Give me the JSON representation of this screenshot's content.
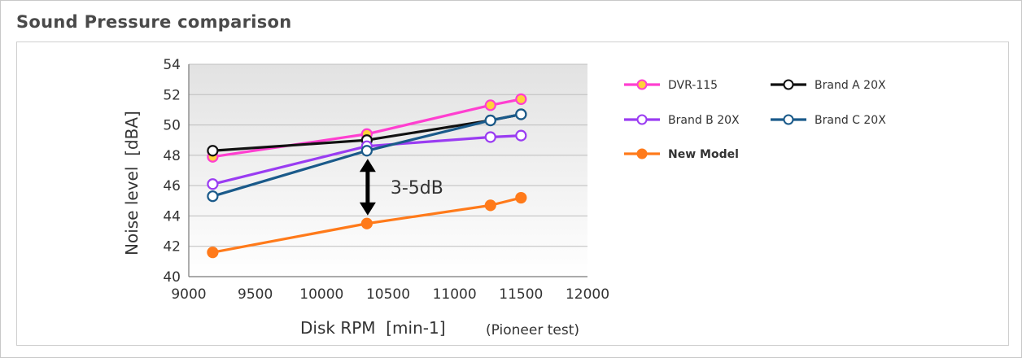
{
  "title": "Sound Pressure comparison",
  "chart_data": {
    "type": "line",
    "xlabel": "Disk RPM  [min-1]",
    "xlabel_note": "(Pioneer test)",
    "ylabel": "Noise level  [dBA]",
    "xlim": [
      9000,
      12000
    ],
    "ylim": [
      40,
      54
    ],
    "xticks": [
      "9000",
      "9500",
      "10000",
      "10500",
      "11000",
      "11500",
      "12000"
    ],
    "yticks": [
      "40",
      "42",
      "44",
      "46",
      "48",
      "50",
      "52",
      "54"
    ],
    "grid": "horizontal",
    "legend_position": "right",
    "series": [
      {
        "name": "DVR-115",
        "color": "#ff3fd0",
        "marker_fill": "#ffd23a",
        "x": [
          9180,
          10340,
          11270,
          11500
        ],
        "y": [
          47.9,
          49.4,
          51.3,
          51.7
        ]
      },
      {
        "name": "Brand A 20X",
        "color": "#111111",
        "marker_fill": "#ffffff",
        "x": [
          9180,
          10340,
          11270,
          11500
        ],
        "y": [
          48.3,
          49.0,
          50.3,
          50.7
        ]
      },
      {
        "name": "Brand B 20X",
        "color": "#9a3cf2",
        "marker_fill": "#ffffff",
        "x": [
          9180,
          10340,
          11270,
          11500
        ],
        "y": [
          46.1,
          48.6,
          49.2,
          49.3
        ]
      },
      {
        "name": "Brand C 20X",
        "color": "#1a5a8a",
        "marker_fill": "#ffffff",
        "x": [
          9180,
          10340,
          11270,
          11500
        ],
        "y": [
          45.3,
          48.3,
          50.3,
          50.7
        ]
      },
      {
        "name": "New Model",
        "color": "#ff7a1a",
        "marker_fill": "#ff7a1a",
        "x": [
          9180,
          10340,
          11270,
          11500
        ],
        "y": [
          41.6,
          43.5,
          44.7,
          45.2
        ]
      }
    ],
    "annotation": {
      "text": "3-5dB",
      "x": 10340,
      "y_top": 48.3,
      "y_bottom": 43.5
    }
  }
}
